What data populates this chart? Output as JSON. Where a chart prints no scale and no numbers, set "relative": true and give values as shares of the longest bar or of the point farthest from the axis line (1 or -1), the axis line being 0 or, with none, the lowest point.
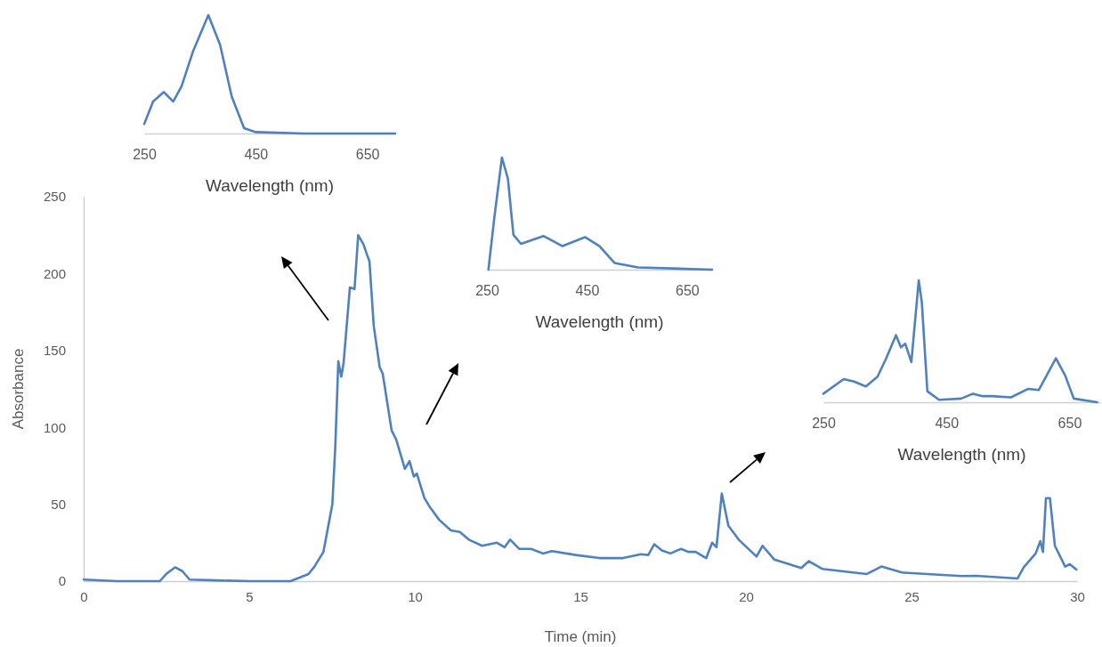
{
  "chart_data": [
    {
      "type": "line",
      "xlabel": "Time (min)",
      "ylabel": "Absorbance",
      "xlim": [
        0,
        30
      ],
      "xticks": [
        0,
        5,
        10,
        15,
        20,
        25,
        30
      ],
      "ylim": [
        0,
        250
      ],
      "yticks": [
        0,
        50,
        100,
        150,
        200,
        250
      ],
      "series": [
        {
          "color": "#4f81bd",
          "x": [
            0,
            1,
            2.3,
            2.49,
            2.76,
            2.98,
            3.2,
            4,
            5,
            6.25,
            6.79,
            6.97,
            7.24,
            7.51,
            7.6,
            7.69,
            7.78,
            7.85,
            8.04,
            8.18,
            8.29,
            8.45,
            8.56,
            8.63,
            8.76,
            8.94,
            9.03,
            9.3,
            9.44,
            9.7,
            9.84,
            9.97,
            10.06,
            10.29,
            10.46,
            10.73,
            11.09,
            11.36,
            11.63,
            12.03,
            12.26,
            12.48,
            12.71,
            12.88,
            13.15,
            13.51,
            13.87,
            14.14,
            14.86,
            15.57,
            16.29,
            16.83,
            17.05,
            17.23,
            17.46,
            17.72,
            18.04,
            18.26,
            18.48,
            18.8,
            18.98,
            19.11,
            19.27,
            19.47,
            19.78,
            20.32,
            20.5,
            20.86,
            21.67,
            21.9,
            22.3,
            23.64,
            24.09,
            24.71,
            26.5,
            26.95,
            28.2,
            28.39,
            28.75,
            28.89,
            28.97,
            29.06,
            29.18,
            29.33,
            29.64,
            29.78,
            29.98
          ],
          "values": [
            1,
            0,
            0,
            4.6,
            9,
            6.5,
            1,
            0.5,
            0,
            0,
            4.6,
            9.5,
            19,
            50,
            88,
            143,
            133,
            142,
            191,
            190,
            225,
            219,
            212,
            208,
            166,
            139,
            135,
            98,
            92,
            73,
            78,
            68,
            70,
            54,
            48,
            40,
            33,
            32,
            27,
            23,
            24,
            25,
            22,
            27,
            21,
            21,
            18,
            19.5,
            17,
            15,
            15,
            17.5,
            17,
            24,
            20,
            18,
            21,
            19,
            19,
            15,
            25,
            22,
            57,
            36,
            27,
            16,
            23,
            14,
            8.5,
            13,
            8,
            4.6,
            9.5,
            5.6,
            3.3,
            3.5,
            1.7,
            9,
            18,
            26,
            19,
            54,
            54,
            23,
            9.5,
            11,
            7.5
          ]
        }
      ]
    },
    {
      "type": "line",
      "relative": true,
      "xlabel": "Wavelength (nm)",
      "xlim": [
        250,
        700
      ],
      "xticks": [
        250,
        450,
        650
      ],
      "tick_labels": "x",
      "series": [
        {
          "color": "#4f81bd",
          "x": [
            250,
            266,
            285,
            302,
            317,
            338,
            365,
            386,
            407,
            429,
            450,
            535,
            700
          ],
          "values": [
            0.08,
            0.27,
            0.35,
            0.27,
            0.4,
            0.7,
            1,
            0.75,
            0.31,
            0.045,
            0.012,
            0,
            0
          ]
        }
      ]
    },
    {
      "type": "line",
      "relative": true,
      "xlabel": "Wavelength (nm)",
      "xlim": [
        250,
        700
      ],
      "xticks": [
        250,
        450,
        650
      ],
      "tick_labels": "x",
      "series": [
        {
          "color": "#4f81bd",
          "x": [
            253,
            265,
            280,
            292,
            303,
            318,
            363,
            401,
            446,
            475,
            505,
            552,
            700
          ],
          "values": [
            0,
            0.47,
            1,
            0.81,
            0.31,
            0.23,
            0.3,
            0.21,
            0.29,
            0.21,
            0.06,
            0.02,
            0
          ]
        }
      ]
    },
    {
      "type": "line",
      "relative": true,
      "xlabel": "Wavelength (nm)",
      "xlim": [
        250,
        700
      ],
      "xticks": [
        250,
        450,
        650
      ],
      "tick_labels": "x",
      "series": [
        {
          "color": "#4f81bd",
          "x": [
            250,
            283,
            300,
            319,
            338,
            352,
            368,
            376,
            383,
            393,
            405,
            410,
            419,
            438,
            474,
            493,
            509,
            524,
            555,
            583,
            600,
            628,
            643,
            657,
            695
          ],
          "values": [
            0.07,
            0.19,
            0.17,
            0.13,
            0.21,
            0.36,
            0.55,
            0.45,
            0.48,
            0.33,
            1,
            0.82,
            0.09,
            0.02,
            0.03,
            0.07,
            0.05,
            0.05,
            0.04,
            0.11,
            0.1,
            0.36,
            0.22,
            0.03,
            0
          ]
        }
      ]
    }
  ]
}
